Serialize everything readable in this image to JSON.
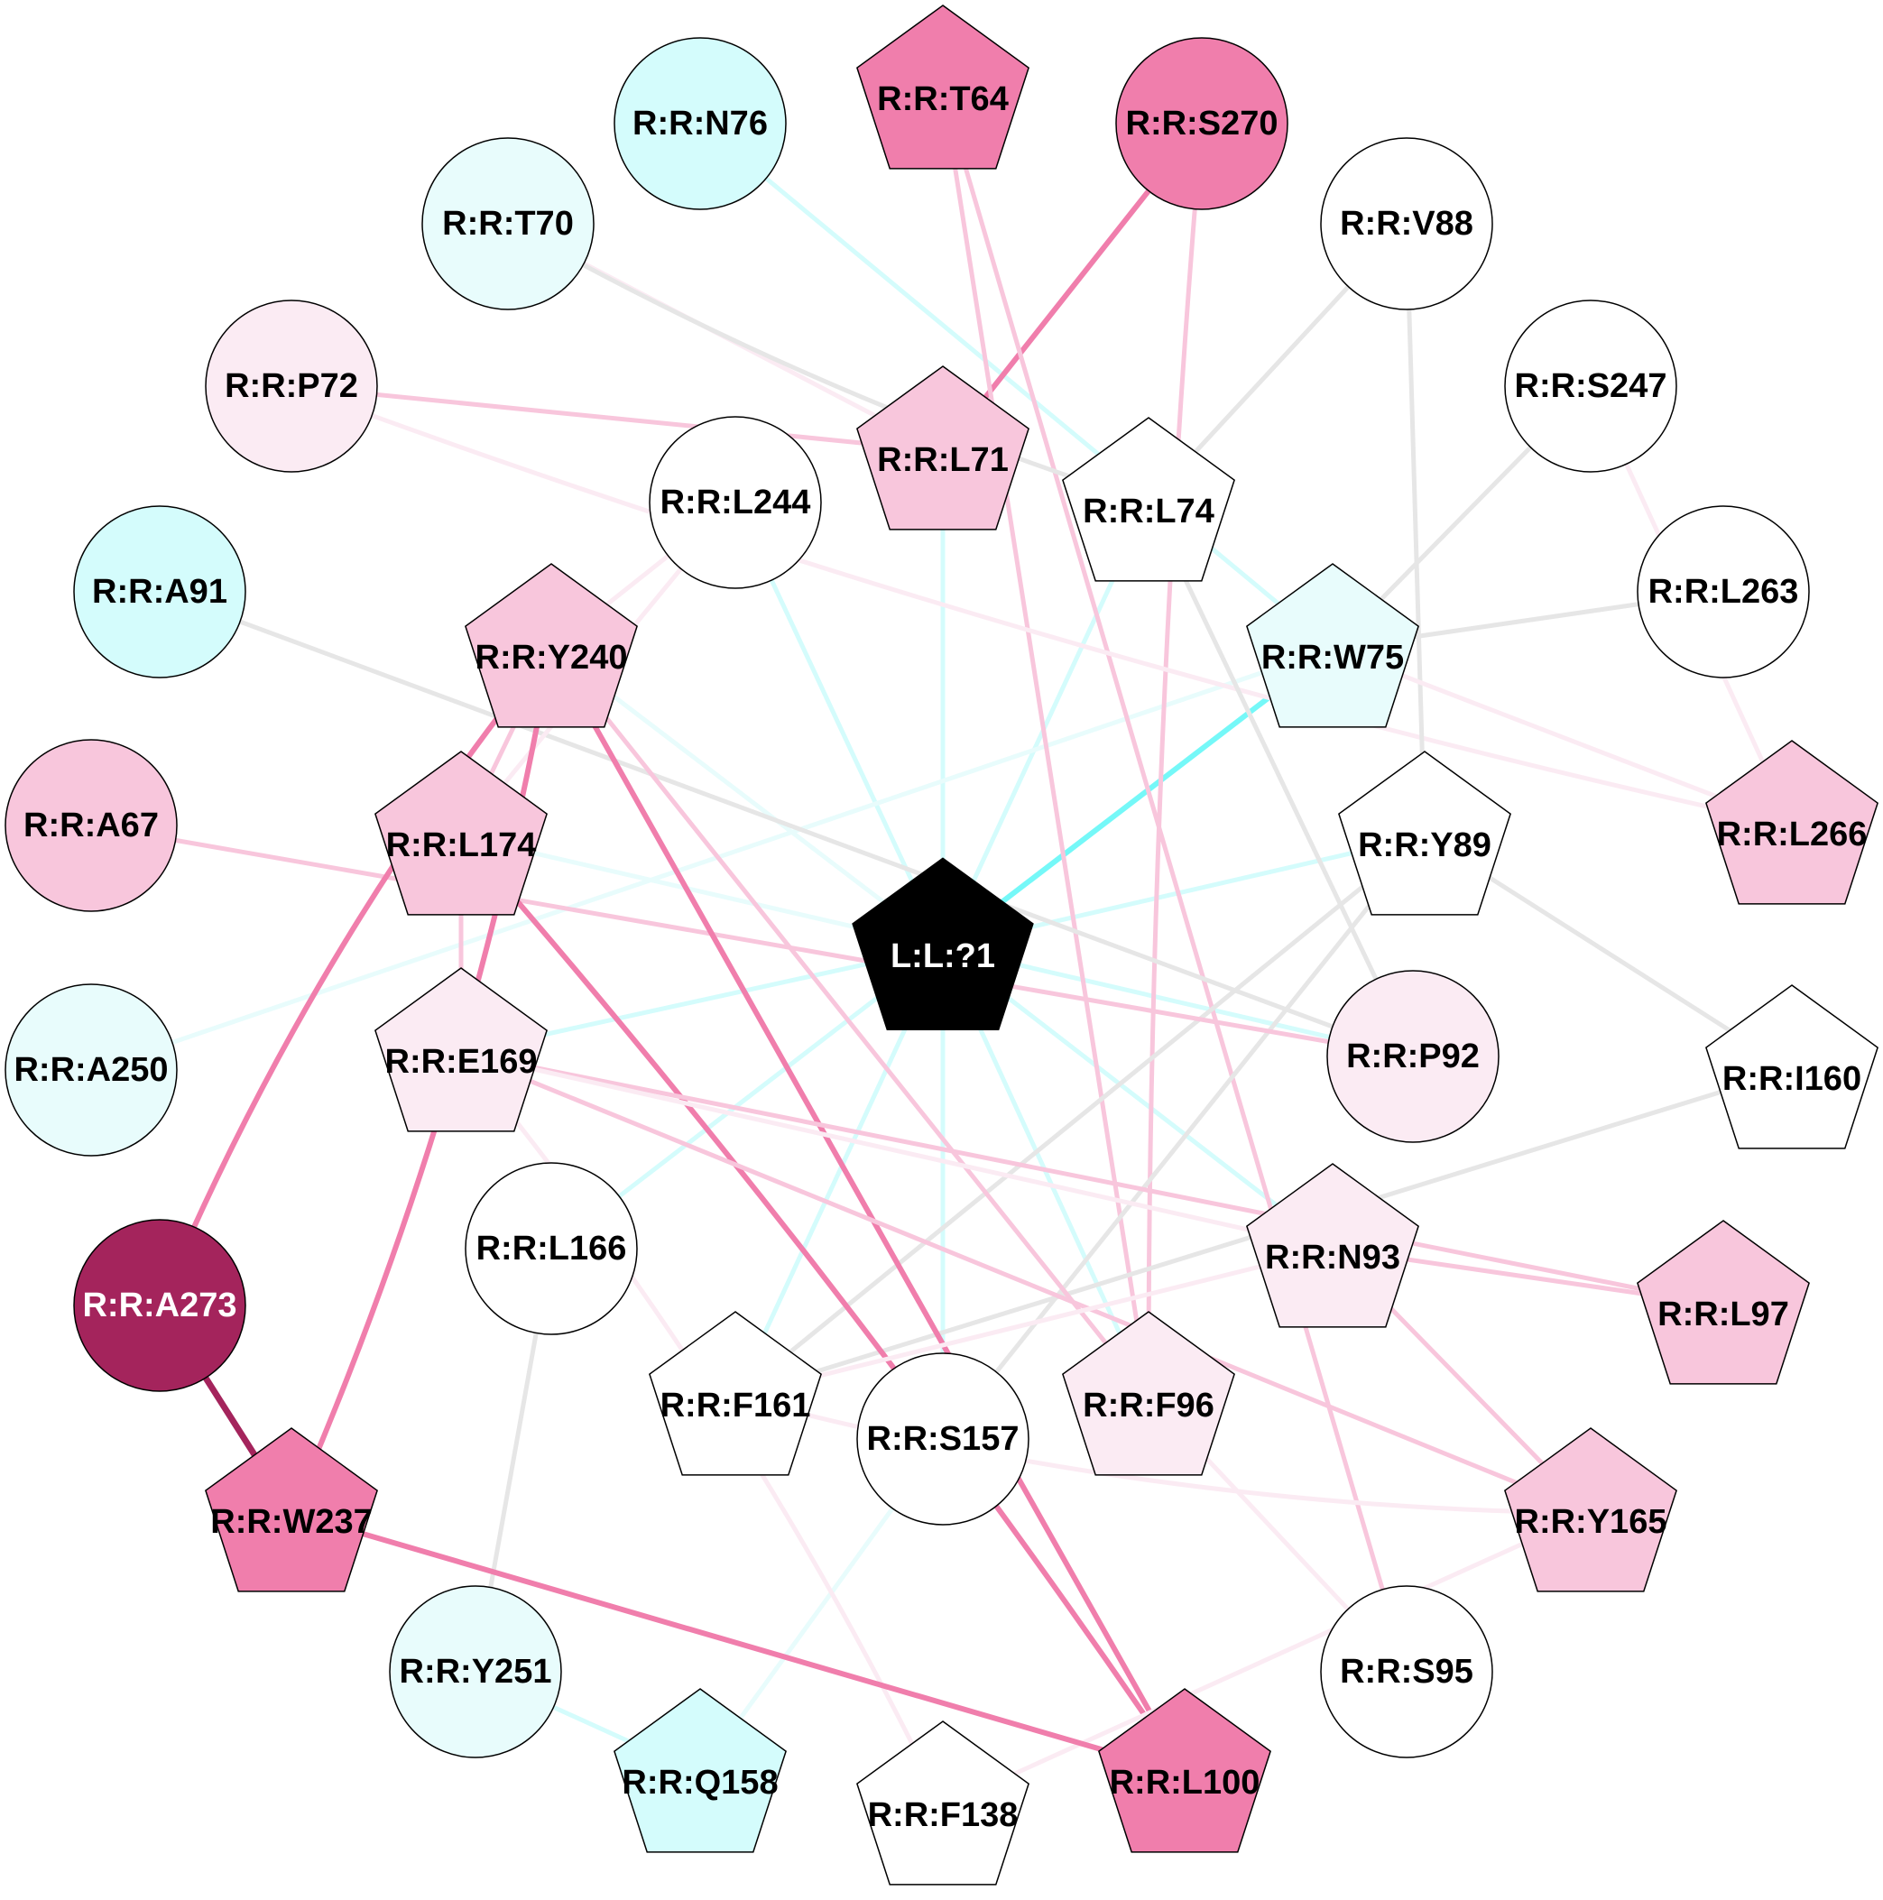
{
  "colors": {
    "dark_magenta": "#a4245c",
    "pink_strong": "#f07eac",
    "pink_medium": "#f8c6dc",
    "pink_light": "#fbebf3",
    "cyan_strong": "#75f8f8",
    "cyan_medium": "#d4fcfc",
    "cyan_light": "#e8fcfc",
    "white": "#ffffff",
    "black": "#000000",
    "gray_edge": "#e6e6e6"
  },
  "nodes": [
    {
      "id": "ligand",
      "label": "L:L:?1",
      "shape": "pentagon",
      "fill": "#000000",
      "text_color": "#ffffff"
    },
    {
      "id": "t64",
      "label": "R:R:T64",
      "shape": "pentagon",
      "fill": "#f07eac",
      "text_color": "#000000"
    },
    {
      "id": "n76",
      "label": "R:R:N76",
      "shape": "circle",
      "fill": "#d4fcfc",
      "text_color": "#000000"
    },
    {
      "id": "s270",
      "label": "R:R:S270",
      "shape": "circle",
      "fill": "#f07eac",
      "text_color": "#000000"
    },
    {
      "id": "t70",
      "label": "R:R:T70",
      "shape": "circle",
      "fill": "#e8fcfc",
      "text_color": "#000000"
    },
    {
      "id": "v88",
      "label": "R:R:V88",
      "shape": "circle",
      "fill": "#ffffff",
      "text_color": "#000000"
    },
    {
      "id": "p72",
      "label": "R:R:P72",
      "shape": "circle",
      "fill": "#fbebf3",
      "text_color": "#000000"
    },
    {
      "id": "l71",
      "label": "R:R:L71",
      "shape": "pentagon",
      "fill": "#f8c6dc",
      "text_color": "#000000"
    },
    {
      "id": "s247",
      "label": "R:R:S247",
      "shape": "circle",
      "fill": "#ffffff",
      "text_color": "#000000"
    },
    {
      "id": "l244",
      "label": "R:R:L244",
      "shape": "circle",
      "fill": "#ffffff",
      "text_color": "#000000"
    },
    {
      "id": "l74",
      "label": "R:R:L74",
      "shape": "pentagon",
      "fill": "#ffffff",
      "text_color": "#000000"
    },
    {
      "id": "a91",
      "label": "R:R:A91",
      "shape": "circle",
      "fill": "#d4fcfc",
      "text_color": "#000000"
    },
    {
      "id": "l263",
      "label": "R:R:L263",
      "shape": "circle",
      "fill": "#ffffff",
      "text_color": "#000000"
    },
    {
      "id": "y240",
      "label": "R:R:Y240",
      "shape": "pentagon",
      "fill": "#f8c6dc",
      "text_color": "#000000"
    },
    {
      "id": "w75",
      "label": "R:R:W75",
      "shape": "pentagon",
      "fill": "#e8fcfc",
      "text_color": "#000000"
    },
    {
      "id": "a67",
      "label": "R:R:A67",
      "shape": "circle",
      "fill": "#f8c6dc",
      "text_color": "#000000"
    },
    {
      "id": "l174",
      "label": "R:R:L174",
      "shape": "pentagon",
      "fill": "#f8c6dc",
      "text_color": "#000000"
    },
    {
      "id": "y89",
      "label": "R:R:Y89",
      "shape": "pentagon",
      "fill": "#ffffff",
      "text_color": "#000000"
    },
    {
      "id": "l266",
      "label": "R:R:L266",
      "shape": "pentagon",
      "fill": "#f8c6dc",
      "text_color": "#000000"
    },
    {
      "id": "a250",
      "label": "R:R:A250",
      "shape": "circle",
      "fill": "#e8fcfc",
      "text_color": "#000000"
    },
    {
      "id": "e169",
      "label": "R:R:E169",
      "shape": "pentagon",
      "fill": "#fbebf3",
      "text_color": "#000000"
    },
    {
      "id": "p92",
      "label": "R:R:P92",
      "shape": "circle",
      "fill": "#fbebf3",
      "text_color": "#000000"
    },
    {
      "id": "i160",
      "label": "R:R:I160",
      "shape": "pentagon",
      "fill": "#ffffff",
      "text_color": "#000000"
    },
    {
      "id": "l166",
      "label": "R:R:L166",
      "shape": "circle",
      "fill": "#ffffff",
      "text_color": "#000000"
    },
    {
      "id": "n93",
      "label": "R:R:N93",
      "shape": "pentagon",
      "fill": "#fbebf3",
      "text_color": "#000000"
    },
    {
      "id": "a273",
      "label": "R:R:A273",
      "shape": "circle",
      "fill": "#a4245c",
      "text_color": "#ffffff"
    },
    {
      "id": "l97",
      "label": "R:R:L97",
      "shape": "pentagon",
      "fill": "#f8c6dc",
      "text_color": "#000000"
    },
    {
      "id": "f161",
      "label": "R:R:F161",
      "shape": "pentagon",
      "fill": "#ffffff",
      "text_color": "#000000"
    },
    {
      "id": "s157",
      "label": "R:R:S157",
      "shape": "circle",
      "fill": "#ffffff",
      "text_color": "#000000"
    },
    {
      "id": "f96",
      "label": "R:R:F96",
      "shape": "pentagon",
      "fill": "#fbebf3",
      "text_color": "#000000"
    },
    {
      "id": "w237",
      "label": "R:R:W237",
      "shape": "pentagon",
      "fill": "#f07eac",
      "text_color": "#000000"
    },
    {
      "id": "y165",
      "label": "R:R:Y165",
      "shape": "pentagon",
      "fill": "#f8c6dc",
      "text_color": "#000000"
    },
    {
      "id": "y251",
      "label": "R:R:Y251",
      "shape": "circle",
      "fill": "#e8fcfc",
      "text_color": "#000000"
    },
    {
      "id": "s95",
      "label": "R:R:S95",
      "shape": "circle",
      "fill": "#ffffff",
      "text_color": "#000000"
    },
    {
      "id": "q158",
      "label": "R:R:Q158",
      "shape": "pentagon",
      "fill": "#d4fcfc",
      "text_color": "#000000"
    },
    {
      "id": "f138",
      "label": "R:R:F138",
      "shape": "pentagon",
      "fill": "#ffffff",
      "text_color": "#000000"
    },
    {
      "id": "l100",
      "label": "R:R:L100",
      "shape": "pentagon",
      "fill": "#f07eac",
      "text_color": "#000000"
    }
  ],
  "edges": [
    {
      "from": "ligand",
      "to": "w75",
      "color": "#75f8f8",
      "strength": "strong"
    },
    {
      "from": "ligand",
      "to": "l71",
      "color": "#d4fcfc",
      "strength": "medium"
    },
    {
      "from": "ligand",
      "to": "l244",
      "color": "#d4fcfc",
      "strength": "medium"
    },
    {
      "from": "ligand",
      "to": "l74",
      "color": "#d4fcfc",
      "strength": "medium"
    },
    {
      "from": "ligand",
      "to": "y89",
      "color": "#d4fcfc",
      "strength": "medium"
    },
    {
      "from": "ligand",
      "to": "p92",
      "color": "#d4fcfc",
      "strength": "medium"
    },
    {
      "from": "ligand",
      "to": "e169",
      "color": "#d4fcfc",
      "strength": "medium"
    },
    {
      "from": "ligand",
      "to": "l174",
      "color": "#e8fcfc",
      "strength": "light"
    },
    {
      "from": "ligand",
      "to": "y240",
      "color": "#e8fcfc",
      "strength": "light"
    },
    {
      "from": "ligand",
      "to": "l166",
      "color": "#d4fcfc",
      "strength": "medium"
    },
    {
      "from": "ligand",
      "to": "f161",
      "color": "#d4fcfc",
      "strength": "medium"
    },
    {
      "from": "ligand",
      "to": "s157",
      "color": "#d4fcfc",
      "strength": "medium"
    },
    {
      "from": "ligand",
      "to": "f96",
      "color": "#d4fcfc",
      "strength": "medium"
    },
    {
      "from": "ligand",
      "to": "n93",
      "color": "#d4fcfc",
      "strength": "medium"
    },
    {
      "from": "n76",
      "to": "w75",
      "color": "#d4fcfc",
      "strength": "medium"
    },
    {
      "from": "a250",
      "to": "w75",
      "color": "#e8fcfc",
      "strength": "light"
    },
    {
      "from": "y251",
      "to": "q158",
      "color": "#d4fcfc",
      "strength": "medium"
    },
    {
      "from": "q158",
      "to": "s157",
      "color": "#e8fcfc",
      "strength": "light"
    },
    {
      "from": "s270",
      "to": "l71",
      "color": "#f07eac",
      "strength": "strong"
    },
    {
      "from": "t64",
      "to": "f96",
      "color": "#f8c6dc",
      "strength": "medium"
    },
    {
      "from": "t64",
      "to": "s95",
      "color": "#f8c6dc",
      "strength": "medium"
    },
    {
      "from": "s270",
      "to": "f96",
      "color": "#f8c6dc",
      "strength": "medium"
    },
    {
      "from": "p72",
      "to": "l71",
      "color": "#f8c6dc",
      "strength": "medium"
    },
    {
      "from": "p72",
      "to": "l266",
      "color": "#fbebf3",
      "strength": "light"
    },
    {
      "from": "t70",
      "to": "l71",
      "color": "#fbebf3",
      "strength": "light"
    },
    {
      "from": "t70",
      "to": "l74",
      "color": "#e6e6e6",
      "strength": "gray"
    },
    {
      "from": "v88",
      "to": "l74",
      "color": "#e6e6e6",
      "strength": "gray"
    },
    {
      "from": "v88",
      "to": "y89",
      "color": "#e6e6e6",
      "strength": "gray"
    },
    {
      "from": "s247",
      "to": "w75",
      "color": "#e6e6e6",
      "strength": "gray"
    },
    {
      "from": "l263",
      "to": "w75",
      "color": "#e6e6e6",
      "strength": "gray"
    },
    {
      "from": "s247",
      "to": "l266",
      "color": "#fbebf3",
      "strength": "light"
    },
    {
      "from": "w75",
      "to": "l266",
      "color": "#fbebf3",
      "strength": "light"
    },
    {
      "from": "l74",
      "to": "p92",
      "color": "#e6e6e6",
      "strength": "gray"
    },
    {
      "from": "a91",
      "to": "p92",
      "color": "#e6e6e6",
      "strength": "gray"
    },
    {
      "from": "y89",
      "to": "i160",
      "color": "#e6e6e6",
      "strength": "gray"
    },
    {
      "from": "y89",
      "to": "f161",
      "color": "#e6e6e6",
      "strength": "gray"
    },
    {
      "from": "y89",
      "to": "s157",
      "color": "#e6e6e6",
      "strength": "gray"
    },
    {
      "from": "i160",
      "to": "f161",
      "color": "#e6e6e6",
      "strength": "gray"
    },
    {
      "from": "l166",
      "to": "y251",
      "color": "#e6e6e6",
      "strength": "gray"
    },
    {
      "from": "a67",
      "to": "p92",
      "color": "#f8c6dc",
      "strength": "medium"
    },
    {
      "from": "l244",
      "to": "y240",
      "color": "#fbebf3",
      "strength": "light"
    },
    {
      "from": "l244",
      "to": "l174",
      "color": "#fbebf3",
      "strength": "light"
    },
    {
      "from": "y240",
      "to": "a273",
      "color": "#f07eac",
      "strength": "strong"
    },
    {
      "from": "y240",
      "to": "w237",
      "color": "#f07eac",
      "strength": "strong"
    },
    {
      "from": "y240",
      "to": "l100",
      "color": "#f07eac",
      "strength": "strong"
    },
    {
      "from": "y240",
      "to": "f96",
      "color": "#f8c6dc",
      "strength": "medium"
    },
    {
      "from": "y240",
      "to": "l174",
      "color": "#f8c6dc",
      "strength": "medium"
    },
    {
      "from": "l174",
      "to": "e169",
      "color": "#f8c6dc",
      "strength": "medium"
    },
    {
      "from": "l174",
      "to": "l100",
      "color": "#f07eac",
      "strength": "strong"
    },
    {
      "from": "e169",
      "to": "l97",
      "color": "#f8c6dc",
      "strength": "medium"
    },
    {
      "from": "e169",
      "to": "y165",
      "color": "#f8c6dc",
      "strength": "medium"
    },
    {
      "from": "e169",
      "to": "n93",
      "color": "#fbebf3",
      "strength": "light"
    },
    {
      "from": "e169",
      "to": "f138",
      "color": "#fbebf3",
      "strength": "light"
    },
    {
      "from": "n93",
      "to": "l97",
      "color": "#f8c6dc",
      "strength": "medium"
    },
    {
      "from": "n93",
      "to": "y165",
      "color": "#f8c6dc",
      "strength": "medium"
    },
    {
      "from": "n93",
      "to": "f161",
      "color": "#fbebf3",
      "strength": "light"
    },
    {
      "from": "f161",
      "to": "y165",
      "color": "#fbebf3",
      "strength": "light"
    },
    {
      "from": "f96",
      "to": "s95",
      "color": "#fbebf3",
      "strength": "light"
    },
    {
      "from": "y165",
      "to": "f138",
      "color": "#fbebf3",
      "strength": "light"
    },
    {
      "from": "a273",
      "to": "w237",
      "color": "#a4245c",
      "strength": "dark"
    },
    {
      "from": "w237",
      "to": "l100",
      "color": "#f07eac",
      "strength": "strong"
    }
  ]
}
